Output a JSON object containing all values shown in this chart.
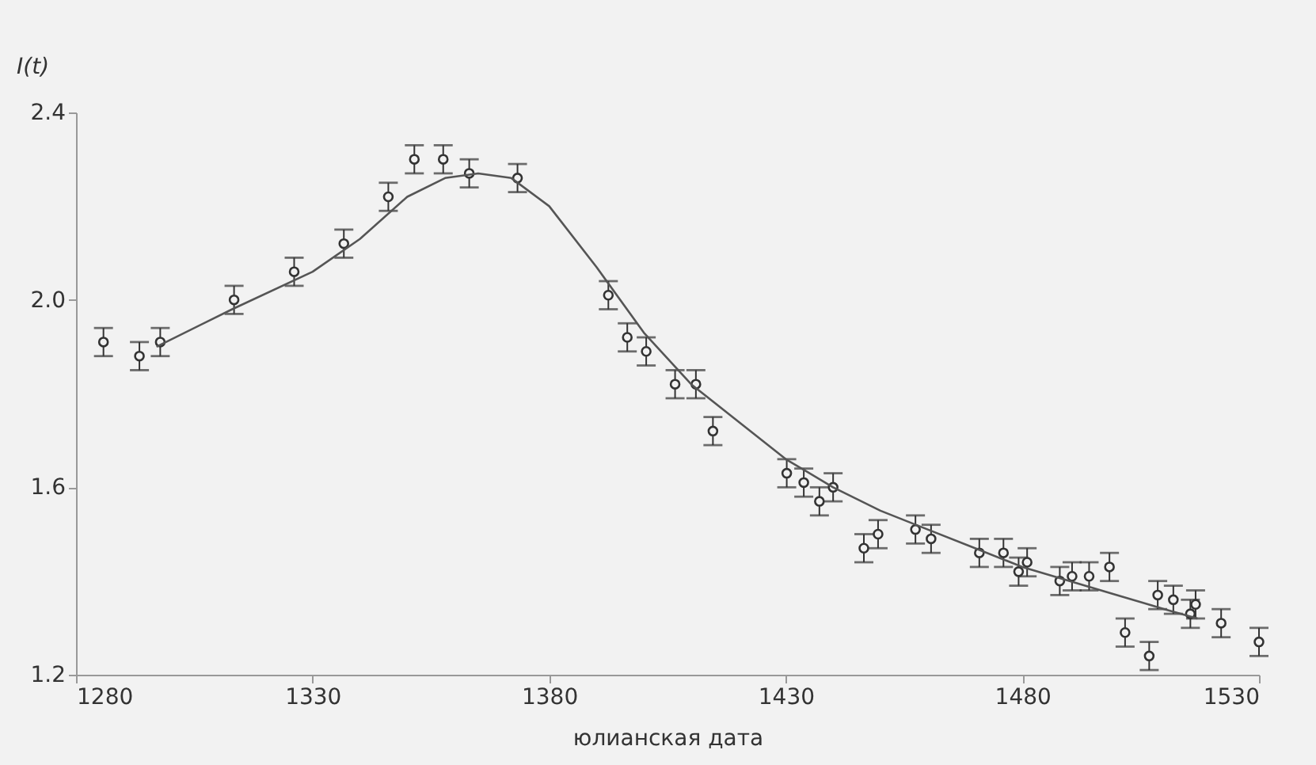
{
  "chart_data": {
    "type": "scatter",
    "xlabel": "юлианская дата",
    "ylabel": "I(t)",
    "xlim": [
      1280,
      1530
    ],
    "xticks": [
      1280,
      1330,
      1380,
      1430,
      1480,
      1530
    ],
    "ylim": [
      1.2,
      2.4
    ],
    "yticks": [
      {
        "value": 1.2,
        "label": "1.2"
      },
      {
        "value": 1.6,
        "label": "1.6"
      },
      {
        "value": 2.0,
        "label": "2.0"
      },
      {
        "value": 2.4,
        "label": "2.4"
      }
    ],
    "grid": false,
    "marker": "circle",
    "series": [
      {
        "color": "#333333",
        "x": [
          1285.8,
          1293.4,
          1297.8,
          1313.4,
          1326.1,
          1336.6,
          1346,
          1351.5,
          1357.6,
          1363.1,
          1373.3,
          1392.5,
          1396.5,
          1400.5,
          1406.6,
          1411,
          1414.6,
          1430.2,
          1433.8,
          1437.1,
          1440,
          1446.5,
          1449.5,
          1457.4,
          1460.7,
          1470.9,
          1476,
          1479.2,
          1481,
          1487.9,
          1490.5,
          1494.1,
          1498.4,
          1501.7,
          1506.8,
          1508.6,
          1511.9,
          1515.5,
          1516.6,
          1522,
          1530
        ],
        "values": [
          1.91,
          1.88,
          1.91,
          2.0,
          2.06,
          2.12,
          2.22,
          2.3,
          2.3,
          2.27,
          2.26,
          2.01,
          1.92,
          1.89,
          1.82,
          1.82,
          1.72,
          1.63,
          1.61,
          1.57,
          1.6,
          1.47,
          1.5,
          1.51,
          1.49,
          1.46,
          1.46,
          1.42,
          1.44,
          1.4,
          1.41,
          1.41,
          1.43,
          1.29,
          1.24,
          1.37,
          1.36,
          1.33,
          1.35,
          1.31,
          1.27
        ],
        "errors": [
          0.03,
          0.03,
          0.03,
          0.03,
          0.03,
          0.03,
          0.03,
          0.03,
          0.03,
          0.03,
          0.03,
          0.03,
          0.03,
          0.03,
          0.03,
          0.03,
          0.03,
          0.03,
          0.03,
          0.03,
          0.03,
          0.03,
          0.03,
          0.03,
          0.03,
          0.03,
          0.03,
          0.03,
          0.03,
          0.03,
          0.03,
          0.03,
          0.03,
          0.03,
          0.03,
          0.03,
          0.03,
          0.03,
          0.03,
          0.03,
          0.03
        ]
      },
      {
        "type": "line",
        "color": "#555555",
        "marker": "none",
        "line_style": "solid",
        "x": [
          1297,
          1313,
          1330,
          1340,
          1350,
          1358,
          1365,
          1372,
          1380,
          1390,
          1400,
          1410,
          1420,
          1430,
          1440,
          1450,
          1460,
          1470,
          1480,
          1490,
          1500,
          1510,
          1517
        ],
        "values": [
          1.9,
          1.98,
          2.06,
          2.13,
          2.22,
          2.26,
          2.27,
          2.26,
          2.2,
          2.07,
          1.93,
          1.82,
          1.74,
          1.66,
          1.6,
          1.55,
          1.51,
          1.47,
          1.43,
          1.4,
          1.37,
          1.34,
          1.32
        ]
      }
    ]
  }
}
